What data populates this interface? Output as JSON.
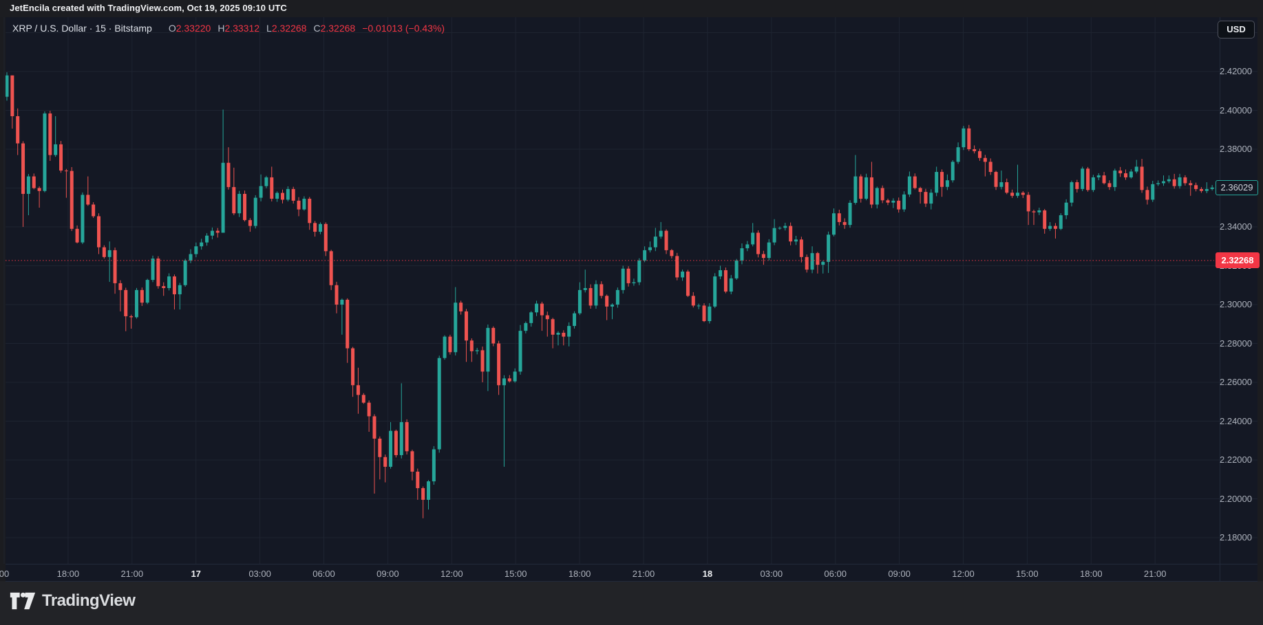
{
  "top_bar": {
    "text": "JetEncila created with TradingView.com, Oct 19, 2025 09:10 UTC"
  },
  "header": {
    "symbol": "XRP / U.S. Dollar",
    "interval": "15",
    "exchange": "Bitstamp",
    "separator": "·",
    "ohlc": [
      {
        "label": "O",
        "value": "2.33220"
      },
      {
        "label": "H",
        "value": "2.33312"
      },
      {
        "label": "L",
        "value": "2.32268"
      },
      {
        "label": "C",
        "value": "2.32268"
      }
    ],
    "change": "−0.01013 (−0.43%)"
  },
  "currency_button": {
    "label": "USD"
  },
  "footer": {
    "logo_text": "TradingView"
  },
  "colors": {
    "up": "#26a69a",
    "down": "#ef5350",
    "grid": "#1e2431",
    "chart_bg": "#141824",
    "axis_text": "#aeb3bd",
    "prev_close_line": "#f23645",
    "last_label_border": "#26a69a",
    "prev_label_bg": "#f23645"
  },
  "chart_data": {
    "type": "candlestick",
    "title": "XRP / U.S. Dollar · 15 · Bitstamp",
    "interval_minutes": 15,
    "legend_position": "top-left",
    "grid": true,
    "y_axis": {
      "ticks": [
        "2.42000",
        "2.40000",
        "2.38000",
        "2.36000",
        "2.34000",
        "2.32000",
        "2.30000",
        "2.28000",
        "2.26000",
        "2.24000",
        "2.22000",
        "2.20000",
        "2.18000"
      ],
      "tick_values": [
        2.42,
        2.4,
        2.38,
        2.36,
        2.34,
        2.32,
        2.3,
        2.28,
        2.26,
        2.24,
        2.22,
        2.2,
        2.18
      ],
      "grid_top_price": 2.44,
      "grid_bottom_price": 2.18,
      "grid_step": 0.02,
      "hidden_by_labels": [
        "2.36000",
        "2.32000"
      ]
    },
    "x_axis": {
      "labels": [
        {
          "text": "00",
          "day": false
        },
        {
          "text": "18:00",
          "day": false
        },
        {
          "text": "21:00",
          "day": false
        },
        {
          "text": "17",
          "day": true
        },
        {
          "text": "03:00",
          "day": false
        },
        {
          "text": "06:00",
          "day": false
        },
        {
          "text": "09:00",
          "day": false
        },
        {
          "text": "12:00",
          "day": false
        },
        {
          "text": "15:00",
          "day": false
        },
        {
          "text": "18:00",
          "day": false
        },
        {
          "text": "21:00",
          "day": false
        },
        {
          "text": "18",
          "day": true
        },
        {
          "text": "03:00",
          "day": false
        },
        {
          "text": "06:00",
          "day": false
        },
        {
          "text": "09:00",
          "day": false
        },
        {
          "text": "12:00",
          "day": false
        },
        {
          "text": "15:00",
          "day": false
        },
        {
          "text": "18:00",
          "day": false
        },
        {
          "text": "21:00",
          "day": false
        }
      ]
    },
    "price_labels": {
      "last": {
        "text": "2.36029",
        "value": 2.36029,
        "style": "outlined-teal"
      },
      "prev_close": {
        "text": "2.32268",
        "value": 2.32268,
        "style": "solid-red",
        "dotted_line": true
      }
    },
    "candles": {
      "first_open": 2.407,
      "closes": [
        2.418,
        2.397,
        2.383,
        2.357,
        2.366,
        2.36,
        2.3585,
        2.3984,
        2.377,
        2.3825,
        2.369,
        2.3688,
        2.339,
        2.332,
        2.3565,
        2.3515,
        2.3455,
        2.3295,
        2.3245,
        2.328,
        2.311,
        2.3075,
        2.294,
        2.2935,
        2.3075,
        2.301,
        2.3127,
        2.3237,
        2.3095,
        2.3085,
        2.3145,
        2.3053,
        2.31,
        2.3227,
        2.326,
        2.33,
        2.332,
        2.3355,
        2.338,
        2.337,
        2.373,
        2.3605,
        2.347,
        2.357,
        2.3435,
        2.3405,
        2.355,
        2.361,
        2.3655,
        2.3545,
        2.3575,
        2.354,
        2.3595,
        2.3535,
        2.349,
        2.3545,
        2.342,
        2.3375,
        2.3415,
        2.3275,
        2.31,
        2.3,
        2.3025,
        2.2775,
        2.2585,
        2.2535,
        2.2495,
        2.2425,
        2.231,
        2.2215,
        2.2165,
        2.235,
        2.2225,
        2.2395,
        2.2245,
        2.214,
        2.2055,
        2.1995,
        2.209,
        2.2255,
        2.2725,
        2.2835,
        2.2755,
        2.301,
        2.2965,
        2.2815,
        2.276,
        2.2765,
        2.2655,
        2.288,
        2.28,
        2.2585,
        2.262,
        2.2605,
        2.2655,
        2.2865,
        2.2905,
        2.296,
        2.3005,
        2.2945,
        2.2925,
        2.2845,
        2.2855,
        2.2835,
        2.289,
        2.2955,
        2.3075,
        2.3085,
        2.2995,
        2.3105,
        2.3045,
        2.299,
        2.3,
        2.3075,
        2.3185,
        2.311,
        2.3115,
        2.3227,
        2.328,
        2.3295,
        2.335,
        2.338,
        2.328,
        2.325,
        2.314,
        2.317,
        2.3045,
        2.2995,
        2.2995,
        2.2915,
        2.299,
        2.3145,
        2.3177,
        2.3067,
        2.3135,
        2.3227,
        2.329,
        2.331,
        2.337,
        2.326,
        2.324,
        2.332,
        2.3394,
        2.3395,
        2.3405,
        2.3325,
        2.3335,
        2.3245,
        2.318,
        2.3265,
        2.3205,
        2.322,
        2.336,
        2.347,
        2.3425,
        2.341,
        2.3524,
        2.366,
        2.3545,
        2.3655,
        2.3515,
        2.36,
        2.3537,
        2.3525,
        2.3535,
        2.349,
        2.3567,
        2.366,
        2.36,
        2.358,
        2.352,
        2.3576,
        2.3683,
        2.3606,
        2.364,
        2.3735,
        2.381,
        2.3907,
        2.38,
        2.379,
        2.3755,
        2.3735,
        2.3683,
        2.3606,
        2.363,
        2.3576,
        2.356,
        2.3576,
        2.3565,
        2.348,
        2.3475,
        2.3485,
        2.339,
        2.3405,
        2.339,
        2.346,
        2.3525,
        2.363,
        2.3595,
        2.37,
        2.359,
        2.3655,
        2.3665,
        2.3625,
        2.3605,
        2.369,
        2.3676,
        2.3655,
        2.3685,
        2.371,
        2.359,
        2.354,
        2.362,
        2.3625,
        2.3635,
        2.3645,
        2.361,
        2.3655,
        2.3625,
        2.3615,
        2.3595,
        2.3585,
        2.3595,
        2.36029
      ],
      "wicks": {
        "0": [
          2.4196,
          2.405
        ],
        "1": [
          2.418,
          2.3906
        ],
        "2": [
          2.401,
          2.377
        ],
        "3": [
          null,
          2.34
        ],
        "4": [
          null,
          2.346
        ],
        "6": [
          null,
          2.3499
        ],
        "8": [
          null,
          2.374
        ],
        "9": [
          2.397,
          null
        ],
        "11": [
          null,
          2.355
        ],
        "13": [
          null,
          2.3315
        ],
        "15": [
          2.366,
          null
        ],
        "17": [
          null,
          2.326
        ],
        "19": [
          2.3325,
          2.3117
        ],
        "20": [
          null,
          2.3056
        ],
        "21": [
          null,
          2.2965
        ],
        "22": [
          null,
          2.2863
        ],
        "23": [
          null,
          2.2876
        ],
        "25": [
          null,
          2.2993
        ],
        "27": [
          2.3252,
          null
        ],
        "29": [
          null,
          2.3045
        ],
        "31": [
          null,
          2.2975
        ],
        "32": [
          null,
          2.2975
        ],
        "34": [
          2.3285,
          null
        ],
        "39": [
          null,
          2.3345
        ],
        "40": [
          2.4004,
          2.337
        ],
        "41": [
          2.381,
          null
        ],
        "42": [
          2.3705,
          null
        ],
        "45": [
          null,
          2.3375
        ],
        "47": [
          2.367,
          null
        ],
        "49": [
          2.371,
          null
        ],
        "54": [
          null,
          2.3455
        ],
        "56": [
          null,
          2.3385
        ],
        "57": [
          null,
          2.335
        ],
        "59": [
          null,
          2.325
        ],
        "60": [
          null,
          2.3075
        ],
        "61": [
          null,
          2.2955
        ],
        "62": [
          null,
          2.2845
        ],
        "63": [
          null,
          2.27
        ],
        "64": [
          null,
          2.2525
        ],
        "65": [
          2.2675,
          2.2438
        ],
        "67": [
          null,
          2.2345
        ],
        "68": [
          null,
          2.2027
        ],
        "69": [
          null,
          2.21
        ],
        "70": [
          null,
          2.2085
        ],
        "71": [
          2.2395,
          null
        ],
        "73": [
          2.2595,
          null
        ],
        "75": [
          null,
          2.2095
        ],
        "76": [
          null,
          2.1995
        ],
        "77": [
          null,
          2.19
        ],
        "78": [
          null,
          2.1945
        ],
        "83": [
          2.309,
          null
        ],
        "84": [
          2.302,
          null
        ],
        "85": [
          null,
          2.2705
        ],
        "86": [
          null,
          2.2705
        ],
        "88": [
          null,
          2.26
        ],
        "89": [
          null,
          2.2555
        ],
        "91": [
          null,
          2.2535
        ],
        "92": [
          null,
          2.2165
        ],
        "95": [
          2.2895,
          null
        ],
        "98": [
          2.302,
          null
        ],
        "99": [
          null,
          2.2865
        ],
        "100": [
          null,
          2.2835
        ],
        "101": [
          null,
          2.2775
        ],
        "102": [
          null,
          2.279
        ],
        "103": [
          null,
          2.279
        ],
        "104": [
          null,
          2.2785
        ],
        "106": [
          2.3115,
          null
        ],
        "107": [
          2.318,
          null
        ],
        "109": [
          2.3125,
          null
        ],
        "111": [
          null,
          2.292
        ],
        "112": [
          null,
          2.2925
        ],
        "114": [
          2.32,
          null
        ],
        "119": [
          2.3325,
          null
        ],
        "120": [
          2.3395,
          null
        ],
        "121": [
          2.3425,
          null
        ],
        "124": [
          null,
          2.3125
        ],
        "127": [
          null,
          2.2985
        ],
        "129": [
          null,
          2.291
        ],
        "132": [
          2.32,
          null
        ],
        "136": [
          2.3315,
          null
        ],
        "138": [
          2.342,
          null
        ],
        "140": [
          null,
          2.3205
        ],
        "142": [
          2.344,
          null
        ],
        "145": [
          null,
          2.3305
        ],
        "147": [
          null,
          2.3217
        ],
        "148": [
          null,
          2.3165
        ],
        "149": [
          2.33,
          null
        ],
        "150": [
          null,
          2.316
        ],
        "151": [
          null,
          2.316
        ],
        "152": [
          null,
          2.3163
        ],
        "153": [
          2.3495,
          null
        ],
        "155": [
          null,
          2.339
        ],
        "157": [
          2.377,
          null
        ],
        "160": [
          2.3735,
          null
        ],
        "161": [
          null,
          2.3495
        ],
        "164": [
          null,
          2.3497
        ],
        "167": [
          2.3685,
          null
        ],
        "169": [
          null,
          2.352
        ],
        "171": [
          null,
          2.349
        ],
        "172": [
          2.371,
          null
        ],
        "173": [
          null,
          2.3555
        ],
        "174": [
          2.367,
          null
        ],
        "176": [
          2.3835,
          null
        ],
        "177": [
          2.392,
          null
        ],
        "178": [
          2.3925,
          null
        ],
        "181": [
          null,
          2.366
        ],
        "184": [
          2.369,
          null
        ],
        "187": [
          2.372,
          null
        ],
        "189": [
          null,
          2.341
        ],
        "190": [
          null,
          2.341
        ],
        "192": [
          null,
          2.3365
        ],
        "194": [
          null,
          2.334
        ],
        "199": [
          2.371,
          null
        ],
        "209": [
          2.3745,
          null
        ],
        "210": [
          2.375,
          null
        ],
        "211": [
          null,
          2.3515
        ],
        "214": [
          2.3665,
          null
        ],
        "216": [
          2.3673,
          null
        ],
        "219": [
          null,
          2.356
        ],
        "222": [
          2.363,
          null
        ]
      }
    }
  }
}
